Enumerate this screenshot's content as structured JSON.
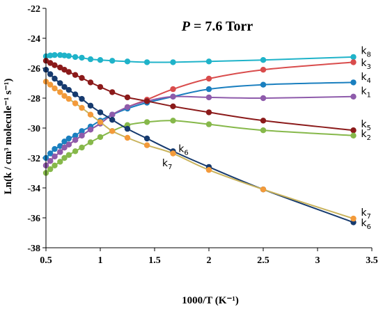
{
  "chart_data": {
    "type": "line",
    "title": "P = 7.6 Torr",
    "title_italic": "P",
    "title_rest": " = 7.6 Torr",
    "xlabel": "1000/T (K⁻¹)",
    "ylabel": "Ln(k / cm³ molecule⁻¹ s⁻¹)",
    "xlim": [
      0.5,
      3.5
    ],
    "ylim": [
      -38,
      -22
    ],
    "xticks": [
      "0.5",
      "1",
      "1.5",
      "2",
      "2.5",
      "3",
      "3.5"
    ],
    "yticks": [
      "-38",
      "-36",
      "-34",
      "-32",
      "-30",
      "-28",
      "-26",
      "-24",
      "-22"
    ],
    "grid": false,
    "series": [
      {
        "name": "k8",
        "color": "#1fb3c9",
        "x": [
          0.5,
          0.54,
          0.58,
          0.63,
          0.67,
          0.71,
          0.77,
          0.83,
          0.91,
          1.0,
          1.11,
          1.25,
          1.43,
          1.67,
          2.0,
          2.5,
          3.33
        ],
        "y": [
          -25.2,
          -25.15,
          -25.12,
          -25.12,
          -25.15,
          -25.18,
          -25.25,
          -25.3,
          -25.4,
          -25.45,
          -25.5,
          -25.55,
          -25.6,
          -25.6,
          -25.55,
          -25.45,
          -25.25
        ]
      },
      {
        "name": "k3",
        "color": "#d94c4c",
        "x": [
          0.5,
          0.54,
          0.58,
          0.63,
          0.67,
          0.71,
          0.77,
          0.83,
          0.91,
          1.0,
          1.11,
          1.25,
          1.43,
          1.67,
          2.0,
          2.5,
          3.33
        ],
        "y": [
          -32.5,
          -32.2,
          -31.9,
          -31.6,
          -31.3,
          -31.1,
          -30.8,
          -30.5,
          -30.1,
          -29.7,
          -29.1,
          -28.6,
          -28.1,
          -27.4,
          -26.7,
          -26.1,
          -25.6
        ]
      },
      {
        "name": "k4",
        "color": "#1a7fbf",
        "x": [
          0.5,
          0.54,
          0.58,
          0.63,
          0.67,
          0.71,
          0.77,
          0.83,
          0.91,
          1.0,
          1.11,
          1.25,
          1.43,
          1.67,
          2.0,
          2.5,
          3.33
        ],
        "y": [
          -32.0,
          -31.7,
          -31.4,
          -31.2,
          -30.9,
          -30.7,
          -30.5,
          -30.2,
          -29.9,
          -29.5,
          -29.1,
          -28.7,
          -28.3,
          -27.9,
          -27.4,
          -27.1,
          -26.95
        ]
      },
      {
        "name": "k1",
        "color": "#8e5bab",
        "x": [
          0.5,
          0.54,
          0.58,
          0.63,
          0.67,
          0.71,
          0.77,
          0.83,
          0.91,
          1.0,
          1.11,
          1.25,
          1.43,
          1.67,
          2.0,
          2.5,
          3.33
        ],
        "y": [
          -32.5,
          -32.2,
          -31.9,
          -31.6,
          -31.3,
          -31.1,
          -30.8,
          -30.5,
          -30.1,
          -29.7,
          -29.1,
          -28.6,
          -28.2,
          -27.9,
          -27.95,
          -28.0,
          -27.9
        ]
      },
      {
        "name": "k5",
        "color": "#8b1a1a",
        "x": [
          0.5,
          0.54,
          0.58,
          0.63,
          0.67,
          0.71,
          0.77,
          0.83,
          0.91,
          1.0,
          1.11,
          1.25,
          1.43,
          1.67,
          2.0,
          2.5,
          3.33
        ],
        "y": [
          -25.5,
          -25.65,
          -25.8,
          -25.95,
          -26.1,
          -26.25,
          -26.45,
          -26.65,
          -26.95,
          -27.25,
          -27.6,
          -27.95,
          -28.2,
          -28.55,
          -28.95,
          -29.5,
          -30.15
        ]
      },
      {
        "name": "k2",
        "color": "#86b84a",
        "x": [
          0.5,
          0.54,
          0.58,
          0.63,
          0.67,
          0.71,
          0.77,
          0.83,
          0.91,
          1.0,
          1.11,
          1.25,
          1.43,
          1.67,
          2.0,
          2.5,
          3.33
        ],
        "y": [
          -33.0,
          -32.75,
          -32.5,
          -32.25,
          -32.0,
          -31.8,
          -31.55,
          -31.3,
          -30.95,
          -30.6,
          -30.2,
          -29.8,
          -29.6,
          -29.5,
          -29.75,
          -30.15,
          -30.5
        ]
      },
      {
        "name": "k6",
        "color": "#163a6e",
        "x": [
          0.5,
          0.54,
          0.58,
          0.63,
          0.67,
          0.71,
          0.77,
          0.83,
          0.91,
          1.0,
          1.11,
          1.25,
          1.43,
          1.67,
          2.0,
          2.5,
          3.33
        ],
        "y": [
          -26.1,
          -26.4,
          -26.7,
          -27.0,
          -27.25,
          -27.45,
          -27.75,
          -28.05,
          -28.5,
          -28.95,
          -29.45,
          -30.05,
          -30.7,
          -31.55,
          -32.6,
          -34.1,
          -36.3
        ]
      },
      {
        "name": "k7",
        "color": "#f39a3a",
        "line_color": "#c9b35c",
        "x": [
          0.5,
          0.54,
          0.58,
          0.63,
          0.67,
          0.71,
          0.77,
          0.83,
          0.91,
          1.0,
          1.11,
          1.25,
          1.43,
          1.67,
          2.0,
          2.5,
          3.33
        ],
        "y": [
          -26.9,
          -27.1,
          -27.35,
          -27.6,
          -27.85,
          -28.05,
          -28.35,
          -28.65,
          -29.1,
          -29.6,
          -30.2,
          -30.65,
          -31.15,
          -31.7,
          -32.8,
          -34.1,
          -36.05
        ]
      }
    ],
    "labels": [
      {
        "id": "k8",
        "main": "k",
        "sub": "8",
        "x": 3.4,
        "y": -25.05
      },
      {
        "id": "k3",
        "main": "k",
        "sub": "3",
        "x": 3.4,
        "y": -25.85
      },
      {
        "id": "k4",
        "main": "k",
        "sub": "4",
        "x": 3.4,
        "y": -26.8
      },
      {
        "id": "k1",
        "main": "k",
        "sub": "1",
        "x": 3.4,
        "y": -27.75
      },
      {
        "id": "k5",
        "main": "k",
        "sub": "5",
        "x": 3.4,
        "y": -29.95
      },
      {
        "id": "k2",
        "main": "k",
        "sub": "2",
        "x": 3.4,
        "y": -30.6
      },
      {
        "id": "k6-mid",
        "main": "k",
        "sub": "6",
        "x": 1.72,
        "y": -31.6
      },
      {
        "id": "k7-mid",
        "main": "k",
        "sub": "7",
        "x": 1.57,
        "y": -32.55
      },
      {
        "id": "k7-end",
        "main": "k",
        "sub": "7",
        "x": 3.4,
        "y": -35.85
      },
      {
        "id": "k6-end",
        "main": "k",
        "sub": "6",
        "x": 3.4,
        "y": -36.55
      }
    ]
  }
}
